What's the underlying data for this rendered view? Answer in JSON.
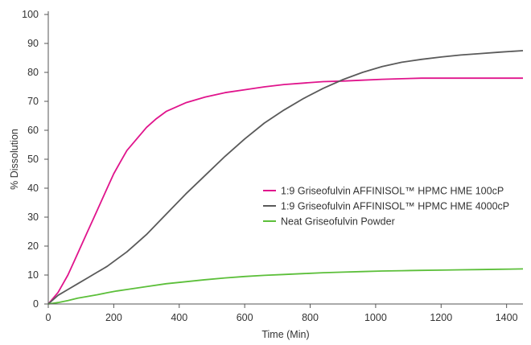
{
  "chart_data": {
    "type": "line",
    "title": "",
    "xlabel": "Time (Min)",
    "ylabel": "% Dissolution",
    "xlim": [
      0,
      1450
    ],
    "ylim": [
      0,
      100
    ],
    "xticks": [
      0,
      200,
      400,
      600,
      800,
      1000,
      1200,
      1400
    ],
    "yticks": [
      0,
      10,
      20,
      30,
      40,
      50,
      60,
      70,
      80,
      90,
      100
    ],
    "grid": false,
    "legend_position": "right",
    "series": [
      {
        "name": "1:9 Griseofulvin AFFINISOL™ HPMC HME 100cP",
        "color": "#e0148c",
        "points": [
          [
            0,
            0
          ],
          [
            15,
            2
          ],
          [
            30,
            4
          ],
          [
            45,
            7
          ],
          [
            60,
            10
          ],
          [
            80,
            15
          ],
          [
            100,
            20
          ],
          [
            120,
            25
          ],
          [
            140,
            30
          ],
          [
            160,
            35
          ],
          [
            180,
            40
          ],
          [
            200,
            45
          ],
          [
            220,
            49
          ],
          [
            240,
            53
          ],
          [
            270,
            57
          ],
          [
            300,
            61
          ],
          [
            330,
            64
          ],
          [
            360,
            66.5
          ],
          [
            420,
            69.5
          ],
          [
            480,
            71.5
          ],
          [
            540,
            73
          ],
          [
            600,
            74
          ],
          [
            660,
            75
          ],
          [
            720,
            75.8
          ],
          [
            780,
            76.3
          ],
          [
            840,
            76.8
          ],
          [
            900,
            77
          ],
          [
            960,
            77.3
          ],
          [
            1020,
            77.6
          ],
          [
            1080,
            77.8
          ],
          [
            1140,
            78
          ],
          [
            1200,
            78
          ],
          [
            1260,
            78
          ],
          [
            1320,
            78
          ],
          [
            1380,
            78
          ],
          [
            1450,
            78
          ]
        ]
      },
      {
        "name": "1:9 Griseofulvin AFFINISOL™ HPMC HME 4000cP",
        "color": "#5a5a5a",
        "points": [
          [
            0,
            0
          ],
          [
            30,
            3
          ],
          [
            60,
            5
          ],
          [
            90,
            7
          ],
          [
            120,
            9
          ],
          [
            150,
            11
          ],
          [
            180,
            13
          ],
          [
            210,
            15.5
          ],
          [
            240,
            18
          ],
          [
            270,
            21
          ],
          [
            300,
            24
          ],
          [
            330,
            27.5
          ],
          [
            360,
            31
          ],
          [
            420,
            38
          ],
          [
            480,
            44.5
          ],
          [
            540,
            51
          ],
          [
            600,
            57
          ],
          [
            660,
            62.5
          ],
          [
            720,
            67
          ],
          [
            780,
            71
          ],
          [
            840,
            74.5
          ],
          [
            900,
            77.5
          ],
          [
            960,
            80
          ],
          [
            1020,
            82
          ],
          [
            1080,
            83.5
          ],
          [
            1140,
            84.5
          ],
          [
            1200,
            85.3
          ],
          [
            1260,
            86
          ],
          [
            1320,
            86.5
          ],
          [
            1380,
            87
          ],
          [
            1450,
            87.5
          ]
        ]
      },
      {
        "name": "Neat Griseofulvin Powder",
        "color": "#5cbf3a",
        "points": [
          [
            0,
            0
          ],
          [
            30,
            0.5
          ],
          [
            60,
            1.2
          ],
          [
            90,
            2
          ],
          [
            120,
            2.6
          ],
          [
            150,
            3.2
          ],
          [
            180,
            3.9
          ],
          [
            210,
            4.5
          ],
          [
            240,
            5
          ],
          [
            300,
            6
          ],
          [
            360,
            7
          ],
          [
            420,
            7.7
          ],
          [
            480,
            8.4
          ],
          [
            540,
            9
          ],
          [
            600,
            9.5
          ],
          [
            660,
            9.9
          ],
          [
            720,
            10.2
          ],
          [
            780,
            10.5
          ],
          [
            840,
            10.8
          ],
          [
            900,
            11
          ],
          [
            960,
            11.2
          ],
          [
            1020,
            11.4
          ],
          [
            1080,
            11.5
          ],
          [
            1140,
            11.6
          ],
          [
            1200,
            11.7
          ],
          [
            1260,
            11.8
          ],
          [
            1320,
            11.9
          ],
          [
            1380,
            12
          ],
          [
            1450,
            12.1
          ]
        ]
      }
    ]
  }
}
